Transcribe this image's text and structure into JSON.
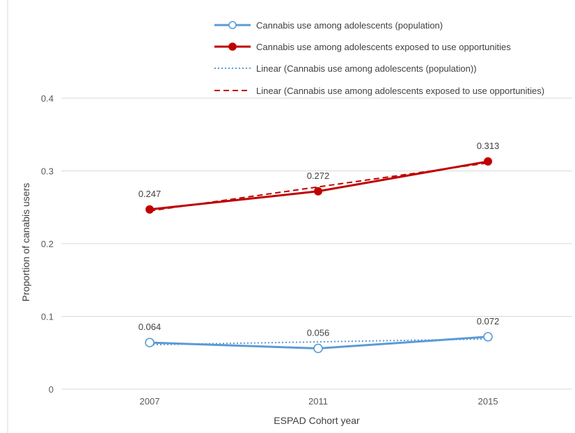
{
  "chart_data": {
    "type": "line",
    "categories": [
      "2007",
      "2011",
      "2015"
    ],
    "xlabel": "ESPAD Cohort year",
    "ylabel": "Proportion of canabis users",
    "ylim": [
      0,
      0.4
    ],
    "yticks": [
      "0",
      "0.1",
      "0.2",
      "0.3",
      "0.4"
    ],
    "grid": true,
    "legend_position": "top",
    "series": [
      {
        "name": "Cannabis use among adolescents (population)",
        "values": [
          0.064,
          0.056,
          0.072
        ],
        "labels": [
          "0.064",
          "0.056",
          "0.072"
        ],
        "color": "#5b9bd5",
        "style": "solid",
        "marker": "open-circle"
      },
      {
        "name": "Cannabis use among adolescents exposed to use opportunities",
        "values": [
          0.247,
          0.272,
          0.313
        ],
        "labels": [
          "0.247",
          "0.272",
          "0.313"
        ],
        "color": "#c00000",
        "style": "solid",
        "marker": "filled-circle"
      },
      {
        "name": "Linear (Cannabis use among adolescents (population))",
        "values": [
          0.061,
          0.065,
          0.069
        ],
        "color": "#5b9bd5",
        "style": "dotted",
        "marker": "none"
      },
      {
        "name": "Linear (Cannabis use among adolescents exposed to use opportunities)",
        "values": [
          0.245,
          0.278,
          0.311
        ],
        "color": "#c00000",
        "style": "dashed",
        "marker": "none"
      }
    ]
  }
}
